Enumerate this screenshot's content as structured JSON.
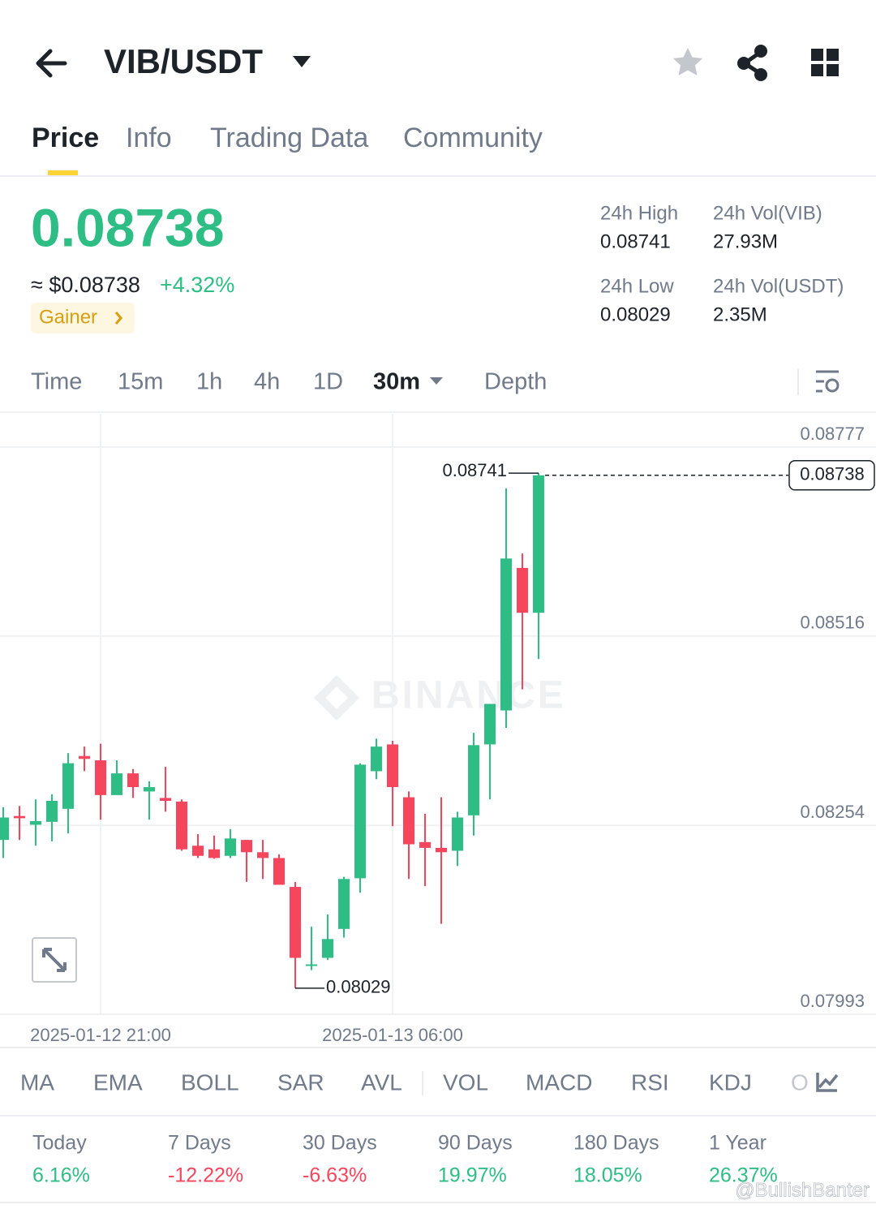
{
  "header": {
    "title": "VIB/USDT"
  },
  "tabs": [
    "Price",
    "Info",
    "Trading Data",
    "Community"
  ],
  "price": {
    "last": "0.08738",
    "usd": "≈ $0.08738",
    "change": "+4.32%",
    "badge": "Gainer"
  },
  "stats": [
    {
      "label": "24h High",
      "value": "0.08741"
    },
    {
      "label": "24h Vol(VIB)",
      "value": "27.93M"
    },
    {
      "label": "24h Low",
      "value": "0.08029"
    },
    {
      "label": "24h Vol(USDT)",
      "value": "2.35M"
    }
  ],
  "intervals": [
    "Time",
    "15m",
    "1h",
    "4h",
    "1D",
    "30m",
    "Depth"
  ],
  "indicators": [
    "MA",
    "EMA",
    "BOLL",
    "SAR",
    "AVL",
    "VOL",
    "MACD",
    "RSI",
    "KDJ",
    "O"
  ],
  "performance": [
    {
      "period": "Today",
      "change": "6.16%"
    },
    {
      "period": "7 Days",
      "change": "-12.22%"
    },
    {
      "period": "30 Days",
      "change": "-6.63%"
    },
    {
      "period": "90 Days",
      "change": "19.97%"
    },
    {
      "period": "180 Days",
      "change": "18.05%"
    },
    {
      "period": "1 Year",
      "change": "26.37%"
    }
  ],
  "watermark": "BINANCE",
  "credit": "@BullishBanter",
  "chart_data": {
    "type": "candlestick",
    "categories": [
      null,
      null,
      null,
      null,
      null,
      null,
      "2025-01-12 21:00",
      null,
      null,
      null,
      null,
      null,
      null,
      null,
      null,
      null,
      null,
      null,
      null,
      null,
      null,
      null,
      null,
      null,
      "2025-01-13 06:00",
      null,
      null,
      null,
      null,
      null,
      null,
      null,
      null,
      null
    ],
    "open": [
      0.08234,
      0.08267,
      0.08255,
      0.08259,
      0.08277,
      0.0835,
      0.08344,
      0.08296,
      0.08326,
      0.08301,
      0.08292,
      0.08287,
      0.08226,
      0.08221,
      0.08212,
      0.08234,
      0.08217,
      0.08209,
      0.08169,
      0.0806,
      0.08071,
      0.08111,
      0.08181,
      0.08329,
      0.08366,
      0.08293,
      0.08231,
      0.08223,
      0.08219,
      0.08268,
      0.08366,
      0.08413,
      0.0861,
      0.08548
    ],
    "high": [
      0.08279,
      0.08281,
      0.0829,
      0.08297,
      0.08354,
      0.08363,
      0.08367,
      0.08344,
      0.08332,
      0.08315,
      0.08335,
      0.0829,
      0.08242,
      0.0824,
      0.08249,
      0.08234,
      0.08234,
      0.08214,
      0.08176,
      0.08114,
      0.08131,
      0.08183,
      0.0834,
      0.08374,
      0.08371,
      0.08301,
      0.0827,
      0.08293,
      0.08273,
      0.08382,
      0.08422,
      0.0872,
      0.0863,
      0.08741
    ],
    "low": [
      0.08209,
      0.08234,
      0.08226,
      0.08232,
      0.08243,
      0.08329,
      0.08262,
      0.08296,
      0.08292,
      0.08262,
      0.08273,
      0.08219,
      0.08209,
      0.08208,
      0.08209,
      0.08176,
      0.0818,
      0.08172,
      0.08029,
      0.08054,
      0.08068,
      0.08099,
      0.08161,
      0.08318,
      0.08253,
      0.0818,
      0.0817,
      0.08118,
      0.08198,
      0.0824,
      0.0829,
      0.08389,
      0.08442,
      0.08484
    ],
    "close": [
      0.08265,
      0.08264,
      0.0826,
      0.08288,
      0.0834,
      0.08346,
      0.08296,
      0.08326,
      0.08307,
      0.08307,
      0.08288,
      0.08221,
      0.08212,
      0.08209,
      0.08236,
      0.08217,
      0.08209,
      0.08172,
      0.08071,
      0.08062,
      0.08097,
      0.0818,
      0.08338,
      0.08363,
      0.08307,
      0.08228,
      0.08223,
      0.08217,
      0.08265,
      0.08365,
      0.08422,
      0.08623,
      0.08548,
      0.08738
    ],
    "up_color": "#2ebd85",
    "down_color": "#f6465d",
    "ylim": [
      0.07993,
      0.08823
    ],
    "yticks": [
      0.08777,
      0.08516,
      0.08254,
      0.07993
    ],
    "grid": true
  }
}
